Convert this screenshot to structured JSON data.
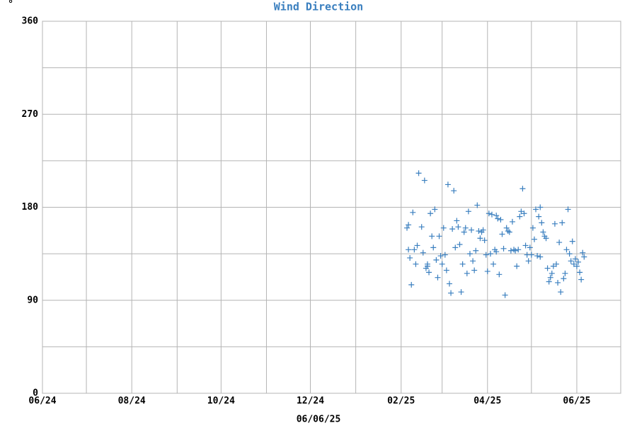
{
  "chart_data": {
    "type": "scatter",
    "title": "Wind Direction",
    "y_unit": "°",
    "x_label": "06/06/25",
    "color": "#3a7fbf",
    "title_color": "#3a7fbf",
    "marker": "+",
    "grid": true,
    "xlim": [
      0,
      395
    ],
    "xticks": [
      {
        "value": 0,
        "label": "06/24"
      },
      {
        "value": 61,
        "label": "08/24"
      },
      {
        "value": 122,
        "label": "10/24"
      },
      {
        "value": 183,
        "label": "12/24"
      },
      {
        "value": 245,
        "label": "02/25"
      },
      {
        "value": 304,
        "label": "04/25"
      },
      {
        "value": 365,
        "label": "06/25"
      }
    ],
    "x_minor_ticks": [
      30,
      92,
      153,
      214,
      273,
      334,
      395
    ],
    "ylim": [
      0,
      360
    ],
    "yticks": [
      0,
      90,
      180,
      270,
      360
    ],
    "y_minor_ticks": [
      45,
      135,
      225,
      315
    ],
    "x": [
      249,
      250,
      250,
      251,
      252,
      253,
      254,
      255,
      256,
      257,
      259,
      260,
      261,
      262,
      263,
      263,
      264,
      265,
      266,
      267,
      268,
      269,
      270,
      271,
      272,
      273,
      274,
      275,
      276,
      277,
      278,
      279,
      280,
      281,
      282,
      283,
      284,
      285,
      286,
      287,
      288,
      289,
      290,
      291,
      292,
      293,
      294,
      295,
      296,
      297,
      298,
      299,
      300,
      301,
      302,
      303,
      304,
      305,
      306,
      307,
      308,
      309,
      310,
      310,
      311,
      312,
      313,
      314,
      315,
      316,
      317,
      318,
      319,
      320,
      321,
      322,
      323,
      324,
      325,
      326,
      327,
      328,
      329,
      330,
      331,
      332,
      333,
      334,
      335,
      336,
      337,
      338,
      339,
      340,
      340,
      341,
      342,
      343,
      344,
      345,
      346,
      347,
      348,
      349,
      350,
      351,
      352,
      353,
      354,
      355,
      356,
      357,
      358,
      359,
      360,
      361,
      362,
      363,
      364,
      365,
      366,
      367,
      368,
      369,
      370
    ],
    "values": [
      160,
      163,
      139,
      131,
      105,
      175,
      139,
      125,
      143,
      213,
      161,
      136,
      206,
      121,
      123,
      125,
      117,
      174,
      152,
      141,
      178,
      129,
      112,
      152,
      133,
      125,
      160,
      134,
      119,
      202,
      106,
      97,
      159,
      196,
      141,
      167,
      161,
      144,
      98,
      125,
      156,
      160,
      116,
      176,
      135,
      158,
      128,
      119,
      138,
      182,
      157,
      150,
      156,
      158,
      148,
      134,
      118,
      174,
      135,
      173,
      125,
      139,
      172,
      137,
      169,
      115,
      168,
      154,
      140,
      95,
      160,
      157,
      156,
      138,
      166,
      139,
      138,
      123,
      139,
      171,
      176,
      198,
      174,
      143,
      134,
      128,
      141,
      134,
      160,
      149,
      178,
      133,
      171,
      180,
      132,
      165,
      156,
      152,
      150,
      121,
      108,
      112,
      116,
      123,
      164,
      125,
      107,
      146,
      98,
      165,
      111,
      116,
      139,
      178,
      135,
      128,
      147,
      125,
      130,
      123,
      127,
      117,
      110,
      136,
      132
    ]
  }
}
